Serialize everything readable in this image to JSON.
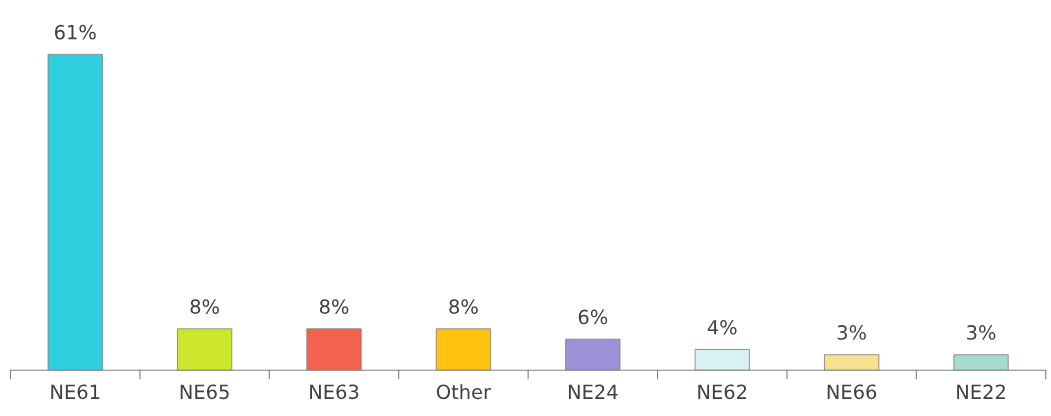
{
  "chart_data": {
    "type": "bar",
    "categories": [
      "NE61",
      "NE65",
      "NE63",
      "Other",
      "NE24",
      "NE62",
      "NE66",
      "NE22"
    ],
    "values": [
      61,
      8,
      8,
      8,
      6,
      4,
      3,
      3
    ],
    "value_labels": [
      "61%",
      "8%",
      "8%",
      "8%",
      "6%",
      "4%",
      "3%",
      "3%"
    ],
    "colors": [
      "#2fcfe0",
      "#cde82c",
      "#f3624c",
      "#ffc20e",
      "#9d92d8",
      "#d9f1f3",
      "#f6e28e",
      "#a6dccd"
    ],
    "grid": false,
    "legend": false
  }
}
